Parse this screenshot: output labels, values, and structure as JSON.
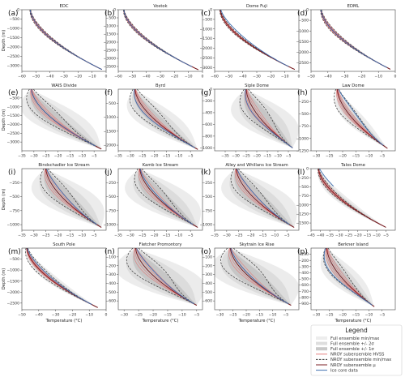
{
  "panel_letters": [
    "(a)",
    "(b)",
    "(c)",
    "(d)",
    "(e)",
    "(f)",
    "(g)",
    "(h)",
    "(i)",
    "(j)",
    "(k)",
    "(l)",
    "(m)",
    "(n)",
    "(o)",
    "(p)"
  ],
  "axis_labels": {
    "y": "Depth (m)",
    "x": "Temperature (°C)"
  },
  "legend": {
    "title": "Legend",
    "items": [
      {
        "label": "Full ensemble min/max",
        "kind": "fill",
        "color": "#ededed"
      },
      {
        "label": "Full ensemble +/- 2σ",
        "kind": "fill",
        "color": "#dedede"
      },
      {
        "label": "Full ensemble +/- 1σ",
        "kind": "fill",
        "color": "#c9c9c9"
      },
      {
        "label": "NROY subensemble HVSS",
        "kind": "line",
        "color": "#e58080"
      },
      {
        "label": "NROY subensemble min/max",
        "kind": "dash",
        "color": "#333333"
      },
      {
        "label": "NROY subensemble μ",
        "kind": "line",
        "color": "#7b1f24"
      },
      {
        "label": "Ice core data",
        "kind": "line",
        "color": "#3f6fb0"
      }
    ]
  },
  "colors": {
    "minmax": "#ececec",
    "two_sigma": "#dcdcdc",
    "one_sigma": "#c6c6c6",
    "hvss": "#e07a7a",
    "nroy_mean": "#7b1f24",
    "nroy_minmax": "#333333",
    "ice_core": "#3f6fb0"
  },
  "chart_data": [
    {
      "type": "line",
      "title": "EDC",
      "xlim": [
        -60,
        0
      ],
      "ylim": [
        3300,
        0
      ],
      "xticks": [
        -60,
        -50,
        -40,
        -30,
        -20,
        -10,
        0
      ],
      "yticks": [
        0,
        -500,
        -1000,
        -1500,
        -2000,
        -2500,
        -3000
      ],
      "surface_temp": -54,
      "base_temp": -3,
      "depth": 3200,
      "spread": 0.015,
      "dash_offset": 0,
      "core_offset": 0,
      "core_depth": 3200,
      "show_ylabel": true,
      "show_xlabel": false
    },
    {
      "type": "line",
      "title": "Vostok",
      "xlim": [
        -60,
        0
      ],
      "ylim": [
        3800,
        0
      ],
      "xticks": [
        -60,
        -50,
        -40,
        -30,
        -20,
        -10,
        0
      ],
      "yticks": [
        0,
        -500,
        -1000,
        -1500,
        -2000,
        -2500,
        -3000,
        -3500
      ],
      "surface_temp": -56,
      "base_temp": -3,
      "depth": 3700,
      "spread": 0.015,
      "dash_offset": 0,
      "core_offset": 0,
      "core_depth": 3600,
      "show_ylabel": false,
      "show_xlabel": false
    },
    {
      "type": "line",
      "title": "Dome Fuji",
      "xlim": [
        -60,
        0
      ],
      "ylim": [
        3200,
        0
      ],
      "xticks": [
        -60,
        -50,
        -40,
        -30,
        -20,
        -10,
        0
      ],
      "yticks": [
        0,
        -500,
        -1000,
        -1500,
        -2000,
        -2500,
        -3000
      ],
      "surface_temp": -56,
      "base_temp": -3,
      "depth": 3100,
      "spread": 0.015,
      "dash_offset": 0,
      "core_offset": 3,
      "core_depth": 3000,
      "show_ylabel": false,
      "show_xlabel": false
    },
    {
      "type": "line",
      "title": "EDML",
      "xlim": [
        -50,
        0
      ],
      "ylim": [
        2900,
        0
      ],
      "xticks": [
        -50,
        -40,
        -30,
        -20,
        -10,
        0
      ],
      "yticks": [
        0,
        -500,
        -1000,
        -1500,
        -2000,
        -2500
      ],
      "surface_temp": -44,
      "base_temp": -3,
      "depth": 2800,
      "spread": 0.02,
      "dash_offset": 0,
      "core_offset": 0,
      "core_depth": 2750,
      "show_ylabel": false,
      "show_xlabel": false
    },
    {
      "type": "line",
      "title": "WAIS Divide",
      "xlim": [
        -35,
        0
      ],
      "ylim": [
        3500,
        0
      ],
      "xticks": [
        -35,
        -30,
        -25,
        -20,
        -15,
        -10,
        -5
      ],
      "yticks": [
        -500,
        -1000,
        -1500,
        -2000,
        -2500,
        -3000
      ],
      "surface_temp": -31,
      "base_temp": -2,
      "depth": 3400,
      "spread": 0.22,
      "dash_offset": 4,
      "core_offset": 0,
      "core_depth": 3300,
      "show_ylabel": true,
      "show_xlabel": false
    },
    {
      "type": "line",
      "title": "Byrd",
      "xlim": [
        -35,
        0
      ],
      "ylim": [
        2200,
        0
      ],
      "xticks": [
        -35,
        -30,
        -25,
        -20,
        -15,
        -10,
        -5
      ],
      "yticks": [
        -500,
        -1000,
        -1500,
        -2000
      ],
      "surface_temp": -28,
      "base_temp": -2,
      "depth": 2150,
      "spread": 0.2,
      "dash_offset": 4,
      "core_offset": -2,
      "core_depth": 2100,
      "show_ylabel": false,
      "show_xlabel": false
    },
    {
      "type": "line",
      "title": "Siple Dome",
      "xlim": [
        -40,
        0
      ],
      "ylim": [
        1050,
        0
      ],
      "xticks": [
        -35,
        -30,
        -25,
        -20,
        -15,
        -10,
        -5
      ],
      "yticks": [
        0,
        -200,
        -400,
        -600,
        -800,
        -1000
      ],
      "surface_temp": -25,
      "base_temp": -3,
      "depth": 1000,
      "spread": 0.35,
      "dash_offset": 5,
      "core_offset": -2,
      "core_depth": 1000,
      "show_ylabel": false,
      "show_xlabel": false
    },
    {
      "type": "line",
      "title": "Law Dome",
      "xlim": [
        -32,
        0
      ],
      "ylim": [
        1250,
        0
      ],
      "xticks": [
        -30,
        -25,
        -20,
        -15,
        -10,
        -5
      ],
      "yticks": [
        -250,
        -500,
        -750,
        -1000,
        -1250
      ],
      "surface_temp": -22,
      "base_temp": -3,
      "depth": 1200,
      "spread": 0.12,
      "dash_offset": 2,
      "core_offset": 3,
      "core_depth": 1150,
      "show_ylabel": false,
      "show_xlabel": false
    },
    {
      "type": "line",
      "title": "Bindschadler Ice Stream",
      "xlim": [
        -35,
        0
      ],
      "ylim": [
        1100,
        0
      ],
      "xticks": [
        -35,
        -30,
        -25,
        -20,
        -15,
        -10,
        -5
      ],
      "yticks": [
        -250,
        -500,
        -750,
        -1000
      ],
      "surface_temp": -25,
      "base_temp": -2,
      "depth": 1050,
      "spread": 0.3,
      "dash_offset": 4,
      "core_offset": 2,
      "core_depth": 1000,
      "show_ylabel": true,
      "show_xlabel": false
    },
    {
      "type": "line",
      "title": "Kamb Ice Stream",
      "xlim": [
        -35,
        0
      ],
      "ylim": [
        1100,
        0
      ],
      "xticks": [
        -35,
        -30,
        -25,
        -20,
        -15,
        -10,
        -5
      ],
      "yticks": [
        -250,
        -500,
        -750,
        -1000
      ],
      "surface_temp": -26,
      "base_temp": -2,
      "depth": 1050,
      "spread": 0.3,
      "dash_offset": 4,
      "core_offset": 1,
      "core_depth": 1000,
      "show_ylabel": false,
      "show_xlabel": false
    },
    {
      "type": "line",
      "title": "Alley and Whillans Ice Stream",
      "xlim": [
        -35,
        0
      ],
      "ylim": [
        1100,
        0
      ],
      "xticks": [
        -35,
        -30,
        -25,
        -20,
        -15,
        -10,
        -5
      ],
      "yticks": [
        -250,
        -500,
        -750,
        -1000
      ],
      "surface_temp": -26,
      "base_temp": -2,
      "depth": 1050,
      "spread": 0.3,
      "dash_offset": 4,
      "core_offset": 2,
      "core_depth": 1000,
      "show_ylabel": false,
      "show_xlabel": false
    },
    {
      "type": "line",
      "title": "Talos Dome",
      "xlim": [
        -45,
        0
      ],
      "ylim": [
        1700,
        0
      ],
      "xticks": [
        -45,
        -40,
        -35,
        -30,
        -25,
        -20,
        -15,
        -10,
        -5
      ],
      "yticks": [
        0,
        -250,
        -500,
        -750,
        -1000,
        -1250,
        -1500
      ],
      "surface_temp": -41,
      "base_temp": -5,
      "depth": 1620,
      "spread": 0.06,
      "dash_offset": 0,
      "core_offset": 4,
      "core_depth": 500,
      "show_ylabel": false,
      "show_xlabel": false
    },
    {
      "type": "line",
      "title": "South Pole",
      "xlim": [
        -50,
        0
      ],
      "ylim": [
        2800,
        0
      ],
      "xticks": [
        -50,
        -40,
        -30,
        -20,
        -10,
        0
      ],
      "yticks": [
        -500,
        -1000,
        -1500,
        -2000,
        -2500
      ],
      "surface_temp": -47,
      "base_temp": -5,
      "depth": 2700,
      "spread": 0.06,
      "dash_offset": 2,
      "core_offset": 2,
      "core_depth": 2600,
      "show_ylabel": true,
      "show_xlabel": true
    },
    {
      "type": "line",
      "title": "Fletcher Promontory",
      "xlim": [
        -32,
        -3
      ],
      "ylim": [
        700,
        0
      ],
      "xticks": [
        -30,
        -25,
        -20,
        -15,
        -10,
        -5
      ],
      "yticks": [
        -100,
        -200,
        -300,
        -400,
        -500,
        -600
      ],
      "surface_temp": -26,
      "base_temp": -5,
      "depth": 650,
      "spread": 0.35,
      "dash_offset": 5,
      "core_offset": 2,
      "core_depth": 640,
      "show_ylabel": false,
      "show_xlabel": true
    },
    {
      "type": "line",
      "title": "Skytrain Ice Rise",
      "xlim": [
        -32,
        0
      ],
      "ylim": [
        700,
        0
      ],
      "xticks": [
        -30,
        -25,
        -20,
        -15,
        -10,
        -5
      ],
      "yticks": [
        -100,
        -200,
        -300,
        -400,
        -500,
        -600
      ],
      "surface_temp": -26,
      "base_temp": -3,
      "depth": 650,
      "spread": 0.35,
      "dash_offset": 6,
      "core_offset": 1,
      "core_depth": 640,
      "show_ylabel": false,
      "show_xlabel": true
    },
    {
      "type": "line",
      "title": "Berkner Island",
      "xlim": [
        -32,
        0
      ],
      "ylim": [
        1000,
        0
      ],
      "xticks": [
        -30,
        -25,
        -20,
        -15,
        -10,
        -5
      ],
      "yticks": [
        -100,
        -200,
        -300,
        -400,
        -500,
        -600,
        -700,
        -800,
        -900
      ],
      "surface_temp": -26,
      "base_temp": -8,
      "depth": 950,
      "spread": 0.2,
      "dash_offset": 2,
      "core_offset": -3,
      "core_depth": 930,
      "show_ylabel": false,
      "show_xlabel": true
    }
  ]
}
